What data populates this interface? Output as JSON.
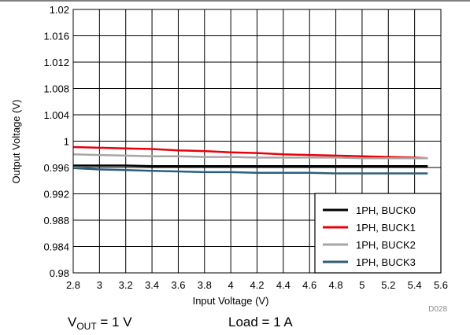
{
  "chart_data": {
    "type": "line",
    "xlabel": "Input Voltage (V)",
    "ylabel": "Output Voltage (V)",
    "xlim": [
      2.8,
      5.6
    ],
    "ylim": [
      0.98,
      1.02
    ],
    "xticks": [
      "2.8",
      "3",
      "3.2",
      "3.4",
      "3.6",
      "3.8",
      "4",
      "4.2",
      "4.4",
      "4.6",
      "4.8",
      "5",
      "5.2",
      "5.4",
      "5.6"
    ],
    "yticks": [
      "0.98",
      "0.984",
      "0.988",
      "0.992",
      "0.996",
      "1",
      "1.004",
      "1.008",
      "1.012",
      "1.016",
      "1.02"
    ],
    "grid": true,
    "legend_position": "bottom-right",
    "figure_id": "D028",
    "series": [
      {
        "name": "1PH, BUCK0",
        "color": "#000000",
        "x": [
          2.8,
          3.0,
          3.2,
          3.4,
          3.6,
          3.8,
          4.0,
          4.2,
          4.4,
          4.6,
          4.8,
          5.0,
          5.2,
          5.4,
          5.5
        ],
        "y": [
          0.9963,
          0.9963,
          0.9963,
          0.9962,
          0.9962,
          0.9962,
          0.9962,
          0.9962,
          0.9962,
          0.9962,
          0.9962,
          0.9962,
          0.9962,
          0.9962,
          0.9962
        ]
      },
      {
        "name": "1PH, BUCK1",
        "color": "#e8000b",
        "x": [
          2.8,
          3.0,
          3.2,
          3.4,
          3.6,
          3.8,
          4.0,
          4.2,
          4.4,
          4.6,
          4.8,
          5.0,
          5.2,
          5.4,
          5.5
        ],
        "y": [
          0.9991,
          0.999,
          0.9989,
          0.9988,
          0.9986,
          0.9985,
          0.9983,
          0.9982,
          0.998,
          0.9979,
          0.9978,
          0.9977,
          0.9976,
          0.9975,
          0.9974
        ]
      },
      {
        "name": "1PH, BUCK2",
        "color": "#a6a6a6",
        "x": [
          2.8,
          3.0,
          3.2,
          3.4,
          3.6,
          3.8,
          4.0,
          4.2,
          4.4,
          4.6,
          4.8,
          5.0,
          5.2,
          5.4,
          5.5
        ],
        "y": [
          0.998,
          0.9979,
          0.9978,
          0.9977,
          0.9977,
          0.9976,
          0.9976,
          0.9975,
          0.9975,
          0.9975,
          0.9975,
          0.9974,
          0.9974,
          0.9974,
          0.9974
        ]
      },
      {
        "name": "1PH, BUCK3",
        "color": "#2b5f7c",
        "x": [
          2.8,
          3.0,
          3.2,
          3.4,
          3.6,
          3.8,
          4.0,
          4.2,
          4.4,
          4.6,
          4.8,
          5.0,
          5.2,
          5.4,
          5.5
        ],
        "y": [
          0.9959,
          0.9957,
          0.9956,
          0.9955,
          0.9954,
          0.9953,
          0.9953,
          0.9952,
          0.9952,
          0.9952,
          0.9951,
          0.9951,
          0.9951,
          0.9951,
          0.9951
        ]
      }
    ]
  },
  "conditions": {
    "vout_main": "V",
    "vout_sub": "OUT",
    "vout_value": " = 1 V",
    "load": "Load = 1 A"
  }
}
